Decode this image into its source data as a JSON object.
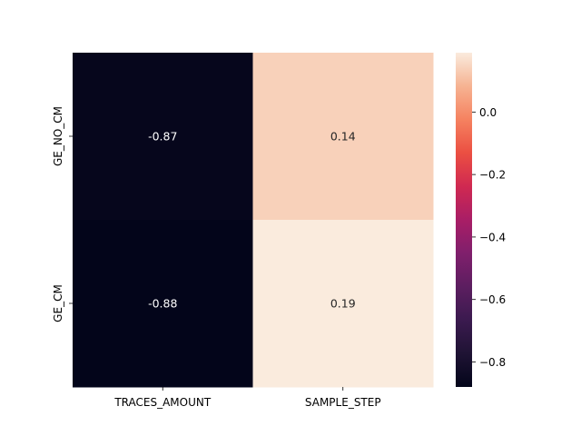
{
  "chart_data": {
    "type": "heatmap",
    "title": "",
    "x_categories": [
      "TRACES_AMOUNT",
      "SAMPLE_STEP"
    ],
    "y_categories": [
      "GE_NO_CM",
      "GE_CM"
    ],
    "values": [
      [
        -0.87,
        0.14
      ],
      [
        -0.88,
        0.19
      ]
    ],
    "value_labels": [
      [
        "-0.87",
        "0.14"
      ],
      [
        "-0.88",
        "0.19"
      ]
    ],
    "colorbar": {
      "colormap": "rocket",
      "range": [
        -0.88,
        0.19
      ],
      "ticks": [
        0.0,
        -0.2,
        -0.4,
        -0.6,
        -0.8
      ],
      "tick_labels": [
        "0.0",
        "−0.2",
        "−0.4",
        "−0.6",
        "−0.8"
      ]
    },
    "colors": {
      "cell_text_dark_bg": "#ffffff",
      "cell_text_light_bg": "#262626"
    }
  }
}
